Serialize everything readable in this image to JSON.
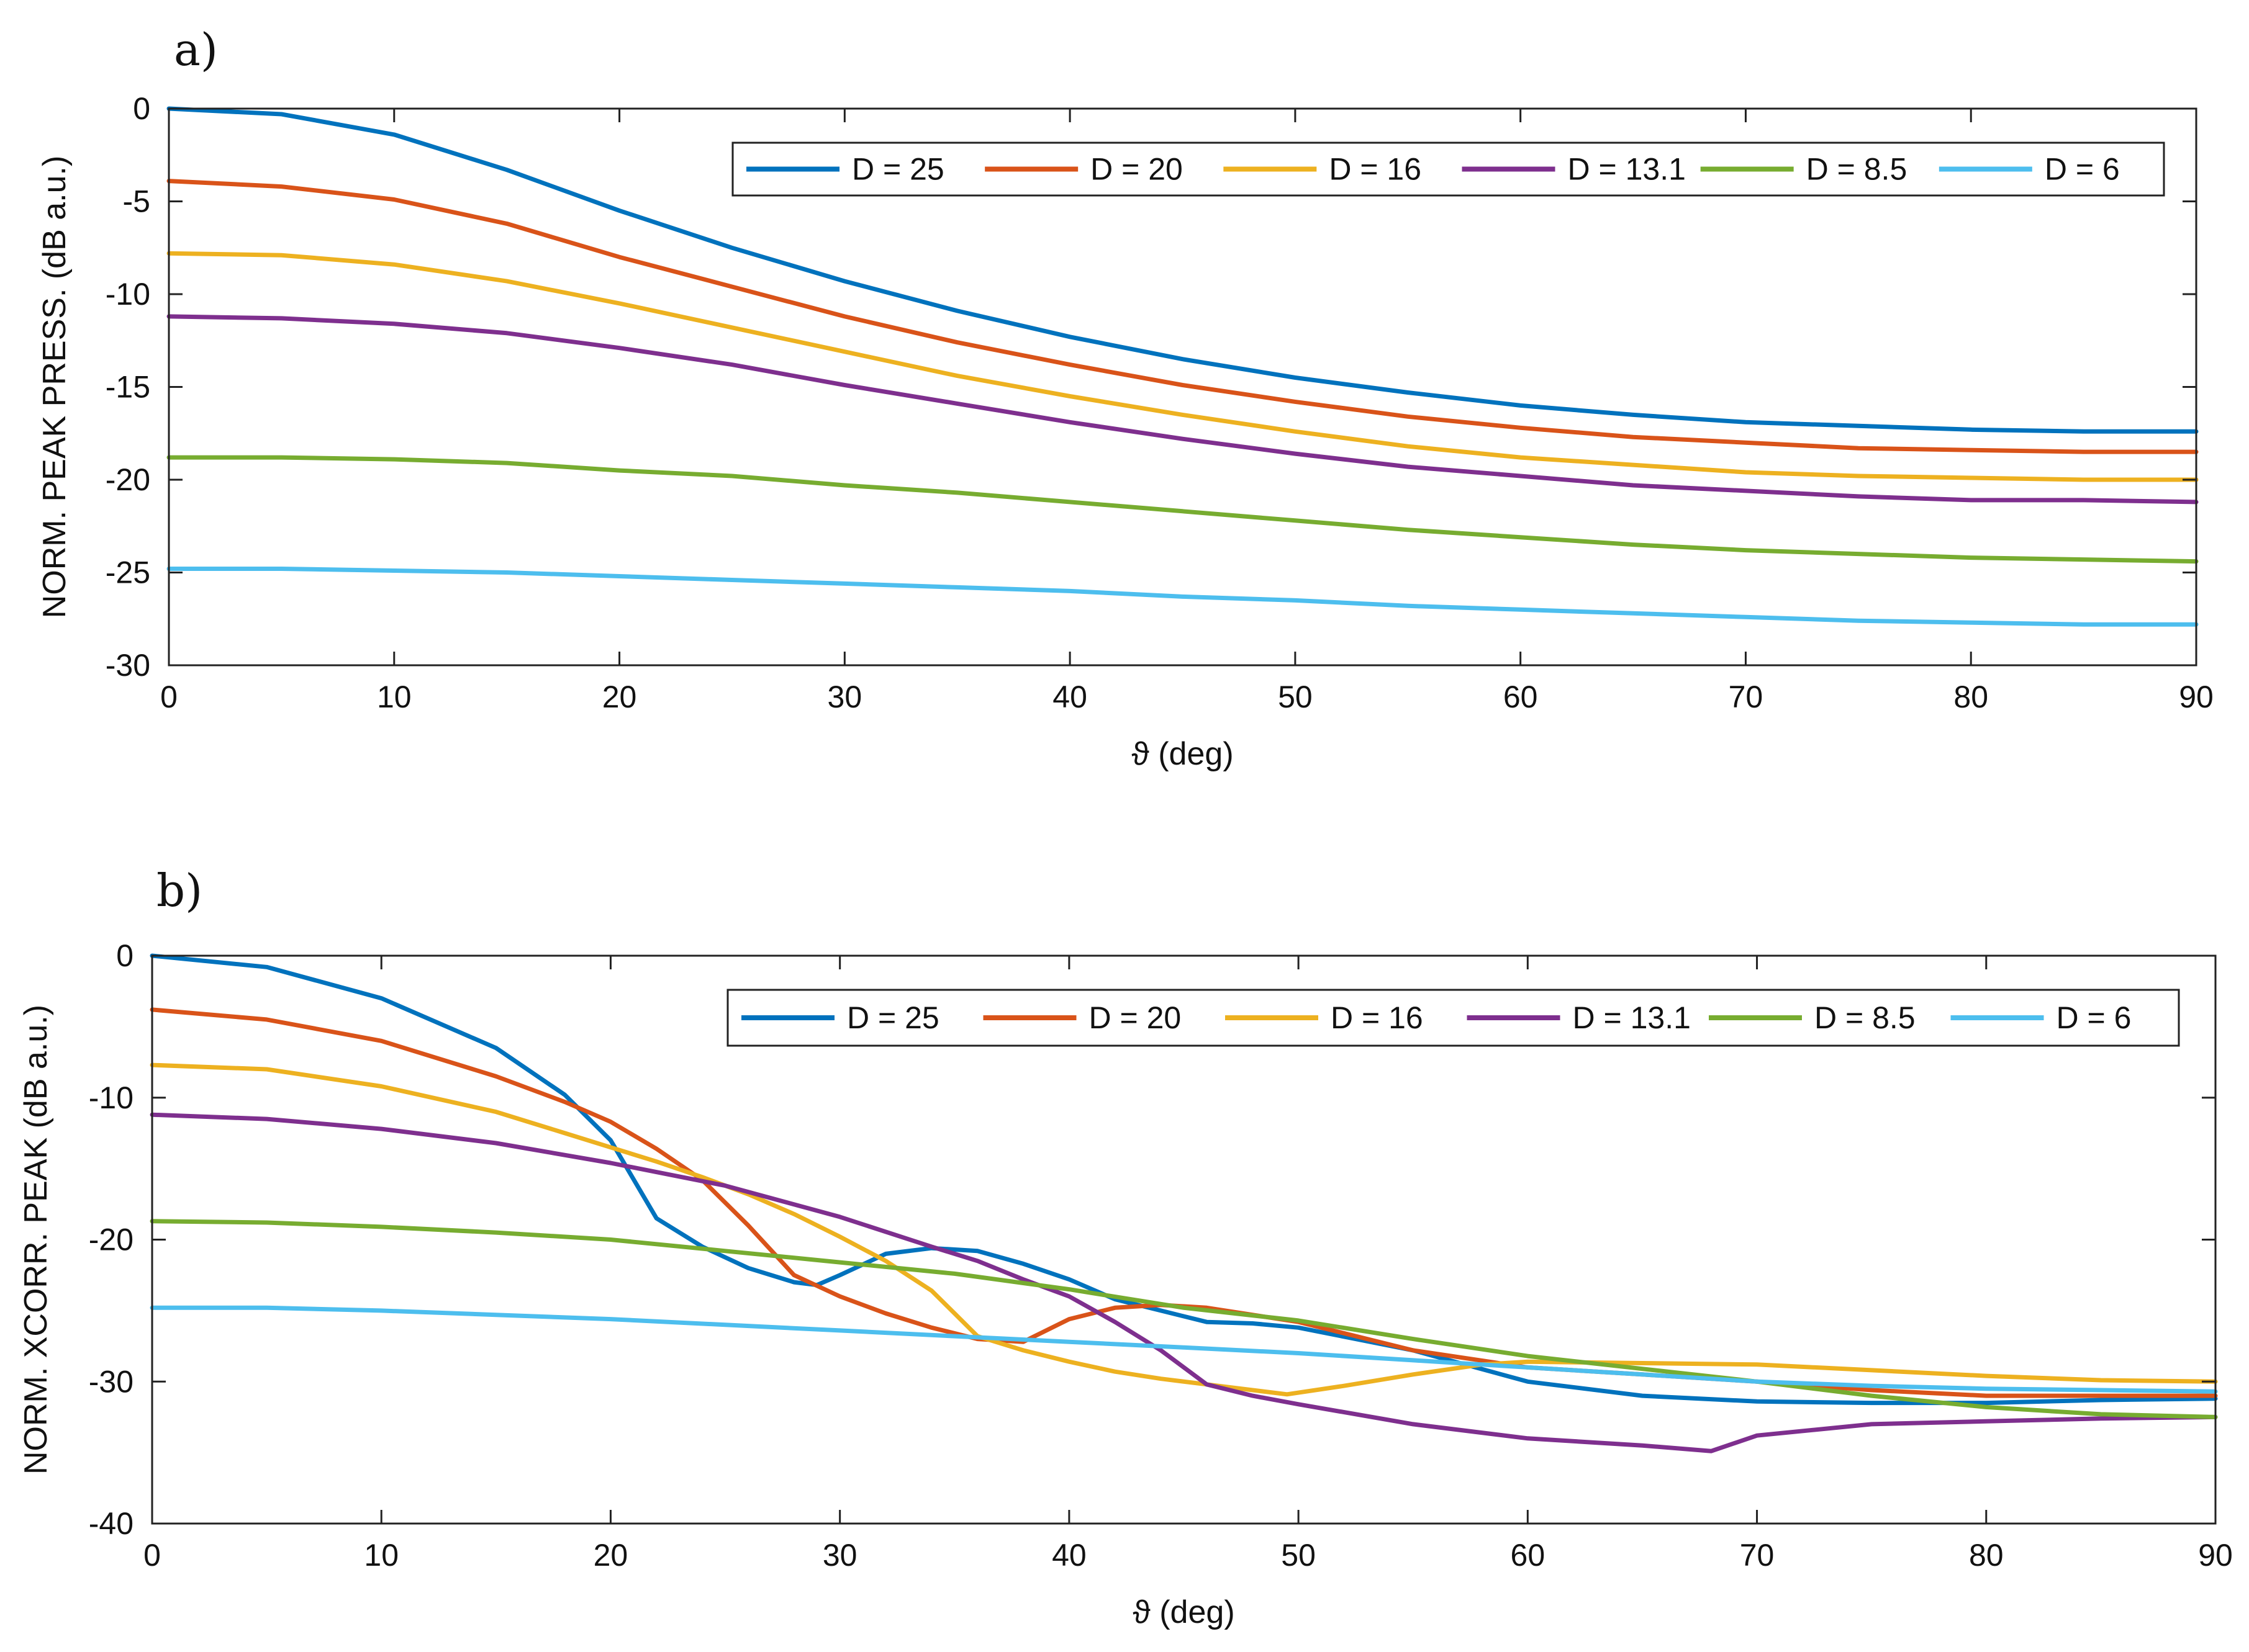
{
  "chart_data": [
    {
      "panel": "a)",
      "type": "line",
      "title": "",
      "xlabel": "ϑ (deg)",
      "ylabel": "NORM. PEAK PRESS. (dB a.u.)",
      "xlim": [
        0,
        90
      ],
      "ylim": [
        -30,
        0
      ],
      "xticks": [
        0,
        10,
        20,
        30,
        40,
        50,
        60,
        70,
        80,
        90
      ],
      "yticks": [
        0,
        -5,
        -10,
        -15,
        -20,
        -25,
        -30
      ],
      "grid": false,
      "legend_position": "top-right",
      "x": [
        0,
        5,
        10,
        15,
        20,
        25,
        30,
        35,
        40,
        45,
        50,
        55,
        60,
        65,
        70,
        75,
        80,
        85,
        90
      ],
      "series": [
        {
          "name": "D = 25",
          "color": "#0072BD",
          "values": [
            0,
            -0.3,
            -1.4,
            -3.3,
            -5.5,
            -7.5,
            -9.3,
            -10.9,
            -12.3,
            -13.5,
            -14.5,
            -15.3,
            -16.0,
            -16.5,
            -16.9,
            -17.1,
            -17.3,
            -17.4,
            -17.4
          ]
        },
        {
          "name": "D = 20",
          "color": "#D95319",
          "values": [
            -3.9,
            -4.2,
            -4.9,
            -6.2,
            -8.0,
            -9.6,
            -11.2,
            -12.6,
            -13.8,
            -14.9,
            -15.8,
            -16.6,
            -17.2,
            -17.7,
            -18.0,
            -18.3,
            -18.4,
            -18.5,
            -18.5
          ]
        },
        {
          "name": "D = 16",
          "color": "#EDB120",
          "values": [
            -7.8,
            -7.9,
            -8.4,
            -9.3,
            -10.5,
            -11.8,
            -13.1,
            -14.4,
            -15.5,
            -16.5,
            -17.4,
            -18.2,
            -18.8,
            -19.2,
            -19.6,
            -19.8,
            -19.9,
            -20.0,
            -20.0
          ]
        },
        {
          "name": "D = 13.1",
          "color": "#7E2F8E",
          "values": [
            -11.2,
            -11.3,
            -11.6,
            -12.1,
            -12.9,
            -13.8,
            -14.9,
            -15.9,
            -16.9,
            -17.8,
            -18.6,
            -19.3,
            -19.8,
            -20.3,
            -20.6,
            -20.9,
            -21.1,
            -21.1,
            -21.2
          ]
        },
        {
          "name": "D = 8.5",
          "color": "#77AC30",
          "values": [
            -18.8,
            -18.8,
            -18.9,
            -19.1,
            -19.5,
            -19.8,
            -20.3,
            -20.7,
            -21.2,
            -21.7,
            -22.2,
            -22.7,
            -23.1,
            -23.5,
            -23.8,
            -24.0,
            -24.2,
            -24.3,
            -24.4
          ]
        },
        {
          "name": "D = 6",
          "color": "#4DBEEE",
          "values": [
            -24.8,
            -24.8,
            -24.9,
            -25.0,
            -25.2,
            -25.4,
            -25.6,
            -25.8,
            -26.0,
            -26.3,
            -26.5,
            -26.8,
            -27.0,
            -27.2,
            -27.4,
            -27.6,
            -27.7,
            -27.8,
            -27.8
          ]
        }
      ]
    },
    {
      "panel": "b)",
      "type": "line",
      "title": "",
      "xlabel": "ϑ (deg)",
      "ylabel": "NORM. XCORR. PEAK (dB a.u.)",
      "xlim": [
        0,
        90
      ],
      "ylim": [
        -40,
        0
      ],
      "xticks": [
        0,
        10,
        20,
        30,
        40,
        50,
        60,
        70,
        80,
        90
      ],
      "yticks": [
        0,
        -10,
        -20,
        -30,
        -40
      ],
      "grid": false,
      "legend_position": "top-right",
      "series": [
        {
          "name": "D = 25",
          "color": "#0072BD",
          "x": [
            0,
            5,
            10,
            15,
            18,
            20,
            22,
            24,
            26,
            28,
            29,
            30,
            32,
            34,
            36,
            38,
            40,
            42,
            44,
            46,
            48,
            50,
            55,
            60,
            65,
            70,
            75,
            80,
            85,
            90
          ],
          "values": [
            0,
            -0.8,
            -3.0,
            -6.5,
            -9.8,
            -13.0,
            -18.5,
            -20.5,
            -22.0,
            -23.0,
            -23.2,
            -22.5,
            -21.0,
            -20.6,
            -20.8,
            -21.7,
            -22.8,
            -24.2,
            -25.0,
            -25.8,
            -25.9,
            -26.2,
            -27.8,
            -30.0,
            -31.0,
            -31.4,
            -31.5,
            -31.5,
            -31.3,
            -31.2
          ]
        },
        {
          "name": "D = 20",
          "color": "#D95319",
          "x": [
            0,
            5,
            10,
            15,
            18,
            20,
            22,
            24,
            26,
            28,
            30,
            32,
            34,
            36,
            38,
            40,
            42,
            44,
            46,
            50,
            55,
            60,
            65,
            70,
            75,
            80,
            85,
            90
          ],
          "values": [
            -3.8,
            -4.5,
            -6.0,
            -8.5,
            -10.3,
            -11.7,
            -13.6,
            -15.8,
            -19.0,
            -22.5,
            -24.0,
            -25.2,
            -26.2,
            -27.0,
            -27.2,
            -25.6,
            -24.8,
            -24.6,
            -24.8,
            -25.8,
            -27.8,
            -29.0,
            -29.5,
            -30.0,
            -30.6,
            -31.0,
            -31.0,
            -31.0
          ]
        },
        {
          "name": "D = 16",
          "color": "#EDB120",
          "x": [
            0,
            5,
            10,
            15,
            18,
            20,
            22,
            24,
            26,
            28,
            30,
            32,
            34,
            35,
            36,
            38,
            40,
            42,
            44,
            46,
            48,
            49.5,
            52,
            55,
            58,
            60,
            65,
            70,
            75,
            80,
            85,
            90
          ],
          "values": [
            -7.7,
            -8.0,
            -9.2,
            -11.0,
            -12.5,
            -13.5,
            -14.5,
            -15.6,
            -16.8,
            -18.2,
            -19.8,
            -21.5,
            -23.6,
            -25.2,
            -26.8,
            -27.8,
            -28.6,
            -29.3,
            -29.8,
            -30.2,
            -30.6,
            -30.9,
            -30.3,
            -29.5,
            -28.8,
            -28.6,
            -28.7,
            -28.8,
            -29.2,
            -29.6,
            -29.9,
            -30.0
          ]
        },
        {
          "name": "D = 13.1",
          "color": "#7E2F8E",
          "x": [
            0,
            5,
            10,
            15,
            20,
            25,
            30,
            34,
            36,
            38,
            40,
            42,
            44,
            46,
            48,
            50,
            55,
            60,
            65,
            68,
            70,
            75,
            80,
            85,
            90
          ],
          "values": [
            -11.2,
            -11.5,
            -12.2,
            -13.2,
            -14.6,
            -16.2,
            -18.4,
            -20.5,
            -21.5,
            -22.8,
            -24.0,
            -25.8,
            -27.8,
            -30.2,
            -31.0,
            -31.6,
            -33.0,
            -34.0,
            -34.5,
            -34.9,
            -33.8,
            -33.0,
            -32.8,
            -32.6,
            -32.5
          ]
        },
        {
          "name": "D = 8.5",
          "color": "#77AC30",
          "x": [
            0,
            5,
            10,
            15,
            20,
            25,
            30,
            35,
            40,
            45,
            50,
            55,
            60,
            65,
            70,
            75,
            80,
            85,
            90
          ],
          "values": [
            -18.7,
            -18.8,
            -19.1,
            -19.5,
            -20.0,
            -20.8,
            -21.6,
            -22.4,
            -23.5,
            -24.8,
            -25.7,
            -27.0,
            -28.2,
            -29.1,
            -30.0,
            -31.0,
            -31.8,
            -32.3,
            -32.5
          ]
        },
        {
          "name": "D = 6",
          "color": "#4DBEEE",
          "x": [
            0,
            5,
            10,
            15,
            20,
            25,
            30,
            35,
            40,
            45,
            50,
            55,
            60,
            65,
            70,
            75,
            80,
            85,
            90
          ],
          "values": [
            -24.8,
            -24.8,
            -25.0,
            -25.3,
            -25.6,
            -26.0,
            -26.4,
            -26.8,
            -27.2,
            -27.6,
            -28.0,
            -28.5,
            -29.0,
            -29.5,
            -30.0,
            -30.3,
            -30.5,
            -30.6,
            -30.7
          ]
        }
      ]
    }
  ]
}
